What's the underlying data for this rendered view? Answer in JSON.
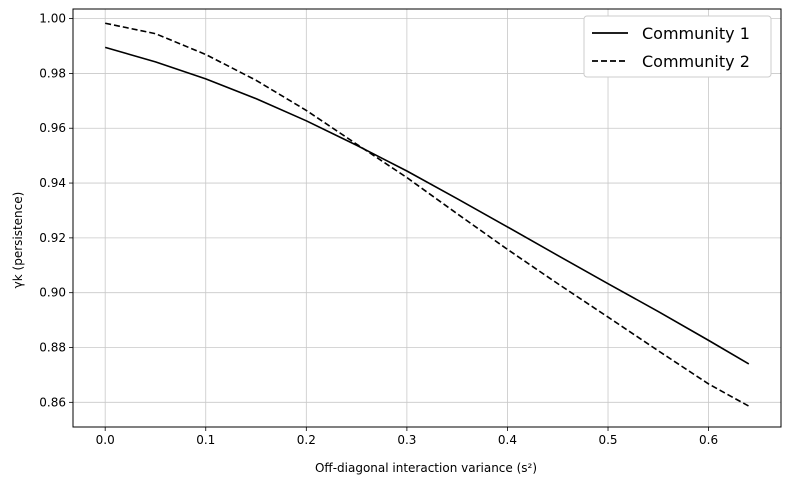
{
  "chart_data": {
    "type": "line",
    "xlabel": "Off-diagonal interaction variance (s²)",
    "ylabel": "γk (persistence)",
    "xlim": [
      -0.032,
      0.672
    ],
    "ylim": [
      0.851,
      1.0035
    ],
    "x_ticks": [
      0.0,
      0.1,
      0.2,
      0.3,
      0.4,
      0.5,
      0.6
    ],
    "x_tick_labels": [
      "0.0",
      "0.1",
      "0.2",
      "0.3",
      "0.4",
      "0.5",
      "0.6"
    ],
    "y_ticks": [
      0.86,
      0.88,
      0.9,
      0.92,
      0.94,
      0.96,
      0.98,
      1.0
    ],
    "y_tick_labels": [
      "0.86",
      "0.88",
      "0.90",
      "0.92",
      "0.94",
      "0.96",
      "0.98",
      "1.00"
    ],
    "grid": true,
    "legend_position": "top-right",
    "series": [
      {
        "name": "Community 1",
        "style": "solid",
        "color": "#000000",
        "x": [
          0.0,
          0.05,
          0.1,
          0.15,
          0.2,
          0.25,
          0.3,
          0.35,
          0.4,
          0.45,
          0.5,
          0.55,
          0.6,
          0.64
        ],
        "y": [
          0.9895,
          0.9842,
          0.978,
          0.9708,
          0.9627,
          0.9538,
          0.9444,
          0.9343,
          0.924,
          0.9136,
          0.9033,
          0.8931,
          0.8826,
          0.874
        ]
      },
      {
        "name": "Community 2",
        "style": "dashed",
        "color": "#000000",
        "x": [
          0.0,
          0.05,
          0.1,
          0.15,
          0.2,
          0.25,
          0.3,
          0.35,
          0.4,
          0.45,
          0.5,
          0.55,
          0.6,
          0.64
        ],
        "y": [
          0.9983,
          0.9945,
          0.9869,
          0.9775,
          0.9665,
          0.9542,
          0.942,
          0.9288,
          0.9158,
          0.9033,
          0.8911,
          0.8788,
          0.8667,
          0.8586
        ]
      }
    ]
  }
}
